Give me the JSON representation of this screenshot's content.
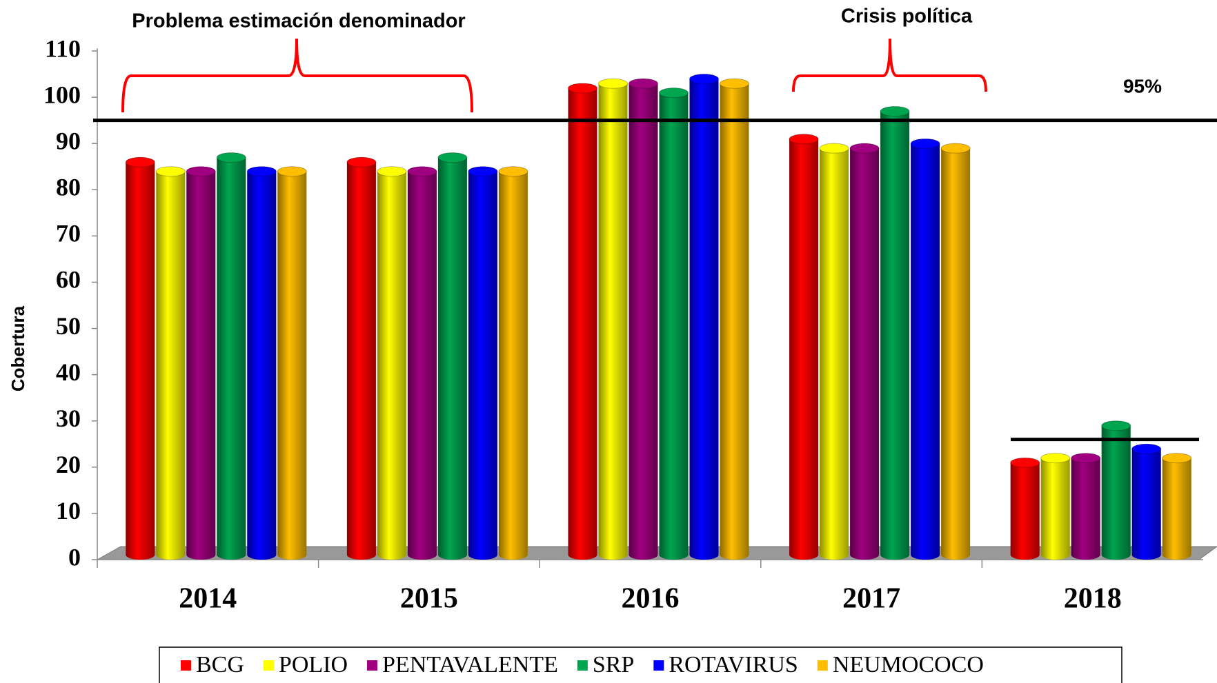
{
  "chart_data": {
    "type": "bar3d",
    "y_axis_label": "Cobertura",
    "categories": [
      "2014",
      "2015",
      "2016",
      "2017",
      "2018"
    ],
    "series": [
      {
        "name": "BCG",
        "color": "#ff0000",
        "values": [
          87,
          87,
          103,
          92,
          22
        ]
      },
      {
        "name": "POLIO",
        "color": "#ffff00",
        "values": [
          85,
          85,
          104,
          90,
          23
        ]
      },
      {
        "name": "PENTAVALENTE",
        "color": "#a0007f",
        "values": [
          85,
          85,
          104,
          90,
          23
        ]
      },
      {
        "name": "SRP",
        "color": "#00a550",
        "values": [
          88,
          88,
          102,
          98,
          30
        ]
      },
      {
        "name": "ROTAVIRUS",
        "color": "#0000ff",
        "values": [
          85,
          85,
          105,
          91,
          25
        ]
      },
      {
        "name": "NEUMOCOCO",
        "color": "#ffbf00",
        "values": [
          85,
          85,
          104,
          90,
          23
        ]
      }
    ],
    "ylim": [
      0,
      110
    ],
    "yticks": [
      0,
      10,
      20,
      30,
      40,
      50,
      60,
      70,
      80,
      90,
      100,
      110
    ],
    "reference_lines": [
      {
        "value": 95,
        "label": "95%"
      },
      {
        "value": 26
      }
    ],
    "annotations": [
      "Problema estimación denominador",
      "Crisis política"
    ]
  }
}
